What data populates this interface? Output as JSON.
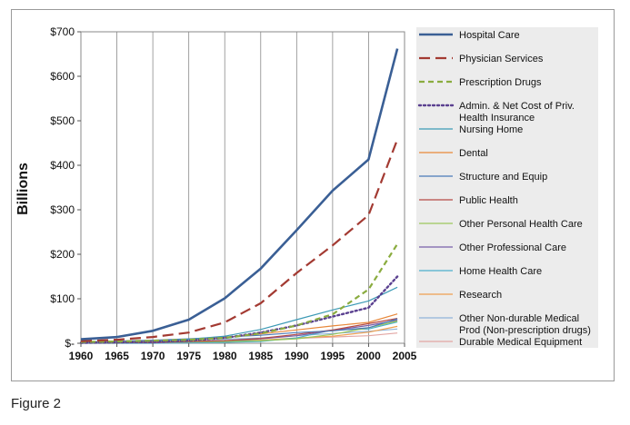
{
  "caption": "Figure 2",
  "chart_data": {
    "type": "line",
    "title": "",
    "xlabel": "",
    "ylabel": "Billions",
    "xlim": [
      1960,
      2005
    ],
    "ylim": [
      0,
      700
    ],
    "x_ticks": [
      1960,
      1965,
      1970,
      1975,
      1980,
      1985,
      1990,
      1995,
      2000,
      2005
    ],
    "x_tick_labels": [
      "1960",
      "1965",
      "1970",
      "1975",
      "1980",
      "1985",
      "1990",
      "1995",
      "2000",
      "2005"
    ],
    "y_ticks": [
      0,
      100,
      200,
      300,
      400,
      500,
      600,
      700
    ],
    "y_tick_labels": [
      "$-",
      "$100",
      "$200",
      "$300",
      "$400",
      "$500",
      "$600",
      "$700"
    ],
    "grid": "vertical",
    "legend_position": "right",
    "x": [
      1960,
      1965,
      1970,
      1975,
      1980,
      1985,
      1990,
      1995,
      2000,
      2004
    ],
    "series": [
      {
        "name": "Hospital Care",
        "color": "#3a5f95",
        "width": 2.6,
        "dash": "",
        "values": [
          9,
          14,
          28,
          53,
          101,
          168,
          254,
          343,
          413,
          662
        ]
      },
      {
        "name": "Physician Services",
        "color": "#a33a32",
        "width": 2.2,
        "dash": "12,6",
        "values": [
          5,
          8,
          14,
          24,
          47,
          90,
          158,
          220,
          288,
          458
        ]
      },
      {
        "name": "Prescription Drugs",
        "color": "#8aac3f",
        "width": 2.2,
        "dash": "6,4",
        "values": [
          3,
          4,
          6,
          8,
          12,
          22,
          40,
          65,
          121,
          223
        ]
      },
      {
        "name": "Admin. & Net Cost of Priv. Health Insurance",
        "color": "#5a4090",
        "width": 2.4,
        "dash": "2,3",
        "values": [
          1,
          2,
          3,
          6,
          12,
          24,
          40,
          60,
          80,
          150
        ]
      },
      {
        "name": "Nursing Home",
        "color": "#3c9ab5",
        "width": 1.2,
        "dash": "",
        "values": [
          1,
          2,
          4,
          9,
          16,
          31,
          53,
          75,
          95,
          126
        ]
      },
      {
        "name": "Dental",
        "color": "#e8883a",
        "width": 1.2,
        "dash": "",
        "values": [
          2,
          3,
          5,
          8,
          13,
          21,
          30,
          39,
          47,
          66
        ]
      },
      {
        "name": "Structure and Equip",
        "color": "#4a7ab8",
        "width": 1.2,
        "dash": "",
        "values": [
          3,
          5,
          7,
          10,
          14,
          18,
          24,
          28,
          35,
          55
        ]
      },
      {
        "name": "Public Health",
        "color": "#b54a44",
        "width": 1.2,
        "dash": "",
        "values": [
          1,
          1,
          2,
          4,
          6,
          11,
          20,
          30,
          44,
          56
        ]
      },
      {
        "name": "Other Personal Health Care",
        "color": "#9cc75b",
        "width": 1.2,
        "dash": "",
        "values": [
          1,
          1,
          2,
          3,
          4,
          6,
          10,
          20,
          35,
          50
        ]
      },
      {
        "name": "Other Professional Care",
        "color": "#7a5fa8",
        "width": 1.2,
        "dash": "",
        "values": [
          0,
          1,
          1,
          3,
          5,
          10,
          17,
          29,
          40,
          52
        ]
      },
      {
        "name": "Home Health Care",
        "color": "#4cb0cc",
        "width": 1.2,
        "dash": "",
        "values": [
          0,
          0,
          0,
          1,
          2,
          4,
          12,
          30,
          32,
          48
        ]
      },
      {
        "name": "Research",
        "color": "#f0a050",
        "width": 1.2,
        "dash": "",
        "values": [
          1,
          2,
          2,
          3,
          5,
          7,
          12,
          16,
          25,
          38
        ]
      },
      {
        "name": "Other Non-durable Medical Prod (Non-prescription drugs)",
        "color": "#8fb3d9",
        "width": 1.2,
        "dash": "",
        "values": [
          2,
          3,
          5,
          7,
          9,
          12,
          17,
          22,
          27,
          32
        ]
      },
      {
        "name": "Durable Medical Equipment",
        "color": "#e3a6a3",
        "width": 1.2,
        "dash": "",
        "values": [
          1,
          1,
          2,
          3,
          4,
          6,
          11,
          14,
          17,
          23
        ]
      }
    ],
    "legend_labels": [
      [
        "Hospital Care"
      ],
      [
        "Physician Services"
      ],
      [
        "Prescription Drugs"
      ],
      [
        "Admin. & Net Cost of Priv.",
        "Health Insurance"
      ],
      [
        "Nursing Home"
      ],
      [
        "Dental"
      ],
      [
        "Structure and Equip"
      ],
      [
        "Public Health"
      ],
      [
        "Other Personal Health Care"
      ],
      [
        "Other Professional Care"
      ],
      [
        "Home Health Care"
      ],
      [
        "Research"
      ],
      [
        "Other Non-durable Medical",
        "Prod (Non-prescription drugs)"
      ],
      [
        "Durable Medical Equipment"
      ]
    ]
  }
}
